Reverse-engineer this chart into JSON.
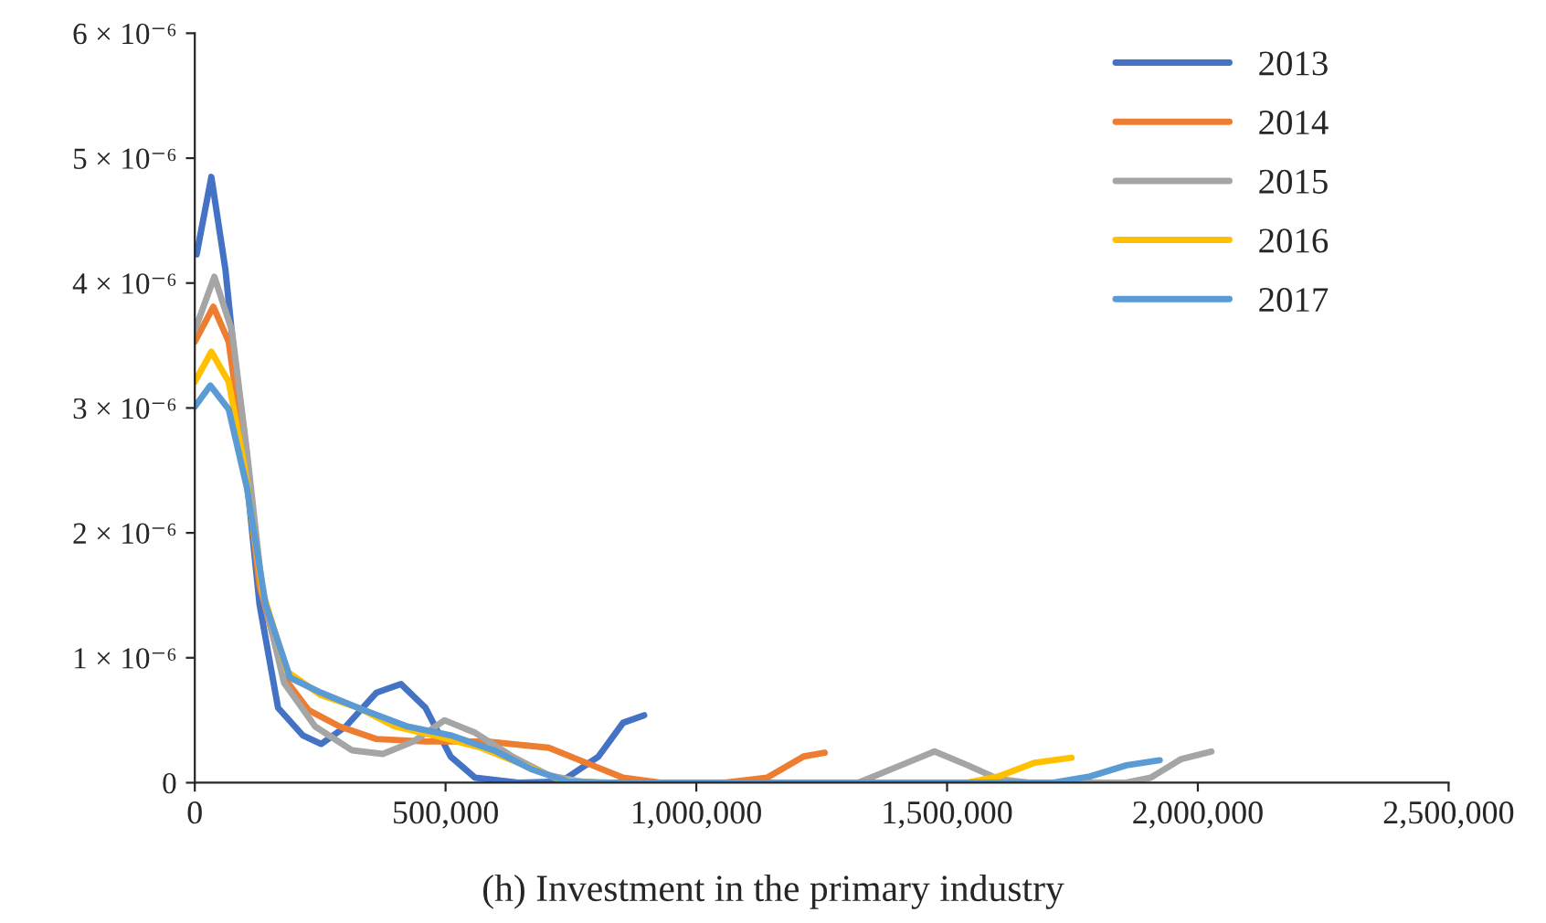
{
  "chart_data": {
    "type": "line",
    "title": "(h) Investment in the primary industry",
    "xlim": [
      0,
      2500000
    ],
    "xticks": [
      {
        "value": 0,
        "label": "0"
      },
      {
        "value": 500000,
        "label": "500,000"
      },
      {
        "value": 1000000,
        "label": "1,000,000"
      },
      {
        "value": 1500000,
        "label": "1,500,000"
      },
      {
        "value": 2000000,
        "label": "2,000,000"
      },
      {
        "value": 2500000,
        "label": "2,500,000"
      }
    ],
    "ylim": [
      0,
      6e-06
    ],
    "yticks": [
      {
        "value": 0,
        "label": "0"
      },
      {
        "value": 1e-06,
        "label": "1 × 10⁻⁶"
      },
      {
        "value": 2e-06,
        "label": "2 × 10⁻⁶"
      },
      {
        "value": 3e-06,
        "label": "3 × 10⁻⁶"
      },
      {
        "value": 4e-06,
        "label": "4 × 10⁻⁶"
      },
      {
        "value": 5e-06,
        "label": "5 × 10⁻⁶"
      },
      {
        "value": 6e-06,
        "label": "6 × 10⁻⁶"
      }
    ],
    "grid": false,
    "legend": "top right",
    "marker": "none",
    "line_style": "solid",
    "series": [
      {
        "name": "2013",
        "color": "#4472c4",
        "x": [
          3700,
          33000,
          61000,
          92000,
          129000,
          166000,
          215000,
          252000,
          301000,
          362000,
          411000,
          460000,
          510000,
          559000,
          645000,
          731000,
          805000,
          854000,
          896000
        ],
        "values": [
          4.23e-06,
          4.85e-06,
          4.11e-06,
          2.89e-06,
          1.43e-06,
          6e-07,
          3.8e-07,
          3.1e-07,
          4.5e-07,
          7.2e-07,
          7.9e-07,
          6e-07,
          2.1e-07,
          4e-08,
          0,
          1e-08,
          2.1e-07,
          4.8e-07,
          5.4e-07
        ]
      },
      {
        "name": "2014",
        "color": "#ed7d31",
        "x": [
          0,
          37000,
          67600,
          98000,
          129000,
          178000,
          227000,
          289000,
          362000,
          460000,
          583000,
          706000,
          780000,
          854000,
          928000,
          1000000,
          1057000,
          1141000,
          1214000,
          1256000
        ],
        "values": [
          3.53e-06,
          3.81e-06,
          3.53e-06,
          2.65e-06,
          1.58e-06,
          8.4e-07,
          5.8e-07,
          4.5e-07,
          3.5e-07,
          3.3e-07,
          3.3e-07,
          2.8e-07,
          1.6e-07,
          4e-08,
          0,
          0,
          0,
          4e-08,
          2.1e-07,
          2.4e-07
        ]
      },
      {
        "name": "2015",
        "color": "#a5a5a5",
        "x": [
          0,
          39000,
          74000,
          104000,
          135000,
          178000,
          240000,
          313000,
          375000,
          436000,
          498000,
          559000,
          633000,
          706000,
          780000,
          1323000,
          1408000,
          1475000,
          1541000,
          1602000,
          1663000,
          1857000,
          1906000,
          1967000,
          2027000
        ],
        "values": [
          3.62e-06,
          4.05e-06,
          3.62e-06,
          2.65e-06,
          1.53e-06,
          8e-07,
          4.5e-07,
          2.6e-07,
          2.3e-07,
          3.3e-07,
          5e-07,
          4e-07,
          2.1e-07,
          6e-08,
          0,
          0,
          1.4e-07,
          2.5e-07,
          1.4e-07,
          3e-08,
          0,
          0,
          4e-08,
          1.9e-07,
          2.5e-07
        ]
      },
      {
        "name": "2016",
        "color": "#ffc000",
        "x": [
          0,
          33000,
          67600,
          98000,
          135000,
          184000,
          252000,
          326000,
          399000,
          485000,
          571000,
          657000,
          731000,
          805000,
          1541000,
          1602000,
          1675000,
          1748000
        ],
        "values": [
          3.21e-06,
          3.45e-06,
          3.21e-06,
          2.55e-06,
          1.53e-06,
          8.9e-07,
          7e-07,
          6e-07,
          4.5e-07,
          3.7e-07,
          2.8e-07,
          1.4e-07,
          2e-08,
          0,
          0,
          5e-08,
          1.6e-07,
          2e-07
        ]
      },
      {
        "name": "2017",
        "color": "#5b9bd5",
        "x": [
          0,
          31000,
          67600,
          104000,
          141000,
          190000,
          252000,
          338000,
          424000,
          510000,
          596000,
          670000,
          743000,
          829000,
          1712000,
          1785000,
          1858000,
          1924000
        ],
        "values": [
          3.01e-06,
          3.18e-06,
          2.99e-06,
          2.36e-06,
          1.43e-06,
          8.4e-07,
          7.2e-07,
          5.8e-07,
          4.5e-07,
          3.8e-07,
          2.6e-07,
          1.1e-07,
          1e-08,
          0,
          0,
          5e-08,
          1.4e-07,
          1.8e-07
        ]
      }
    ]
  }
}
